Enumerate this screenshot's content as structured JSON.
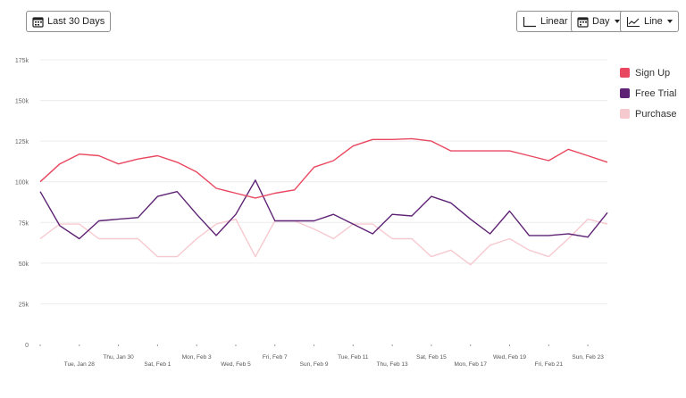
{
  "toolbar": {
    "range_label": "Last 30 Days",
    "scale_label": "Linear",
    "unit_label": "Day",
    "type_label": "Line"
  },
  "chart_data": {
    "type": "line",
    "title": "",
    "xlabel": "",
    "ylabel": "",
    "ylim": [
      0,
      175000
    ],
    "y_ticks": [
      "0",
      "25k",
      "50k",
      "75k",
      "100k",
      "125k",
      "150k",
      "175k"
    ],
    "x_ticks": [
      "Tue, Jan 28",
      "Thu, Jan 30",
      "Sat, Feb 1",
      "Mon, Feb 3",
      "Wed, Feb 5",
      "Fri, Feb 7",
      "Sun, Feb 9",
      "Tue, Feb 11",
      "Thu, Feb 13",
      "Sat, Feb 15",
      "Mon, Feb 17",
      "Wed, Feb 19",
      "Fri, Feb 21",
      "Sun, Feb 23"
    ],
    "x": [
      "Jan 26",
      "Jan 27",
      "Jan 28",
      "Jan 29",
      "Jan 30",
      "Jan 31",
      "Feb 1",
      "Feb 2",
      "Feb 3",
      "Feb 4",
      "Feb 5",
      "Feb 6",
      "Feb 7",
      "Feb 8",
      "Feb 9",
      "Feb 10",
      "Feb 11",
      "Feb 12",
      "Feb 13",
      "Feb 14",
      "Feb 15",
      "Feb 16",
      "Feb 17",
      "Feb 18",
      "Feb 19",
      "Feb 20",
      "Feb 21",
      "Feb 22",
      "Feb 23",
      "Feb 24"
    ],
    "grid": true,
    "legend_position": "right",
    "series": [
      {
        "name": "Sign Up",
        "color": "#e8475f",
        "values": [
          100000,
          111000,
          117000,
          116000,
          111000,
          114000,
          116000,
          112000,
          106000,
          96000,
          93000,
          90000,
          93000,
          95000,
          109000,
          113000,
          122000,
          126000,
          126000,
          126500,
          125000,
          119000,
          119000,
          119000,
          119000,
          116000,
          113000,
          120000,
          116000,
          112000
        ]
      },
      {
        "name": "Free Trial",
        "color": "#5e2374",
        "values": [
          94000,
          73000,
          65000,
          76000,
          77000,
          78000,
          91000,
          94000,
          80000,
          67000,
          80000,
          101000,
          76000,
          76000,
          76000,
          80000,
          74000,
          68000,
          80000,
          79000,
          91000,
          87000,
          77000,
          68000,
          82000,
          67000,
          67000,
          68000,
          66000,
          81000
        ]
      },
      {
        "name": "Purchase",
        "color": "#f6c9cf",
        "values": [
          65000,
          74000,
          74000,
          65000,
          65000,
          65000,
          54000,
          54000,
          65000,
          74000,
          77000,
          54000,
          76000,
          76000,
          71000,
          65000,
          74000,
          74000,
          65000,
          65000,
          54000,
          58000,
          49000,
          61000,
          65000,
          58000,
          54000,
          65000,
          77000,
          74000
        ]
      }
    ]
  }
}
